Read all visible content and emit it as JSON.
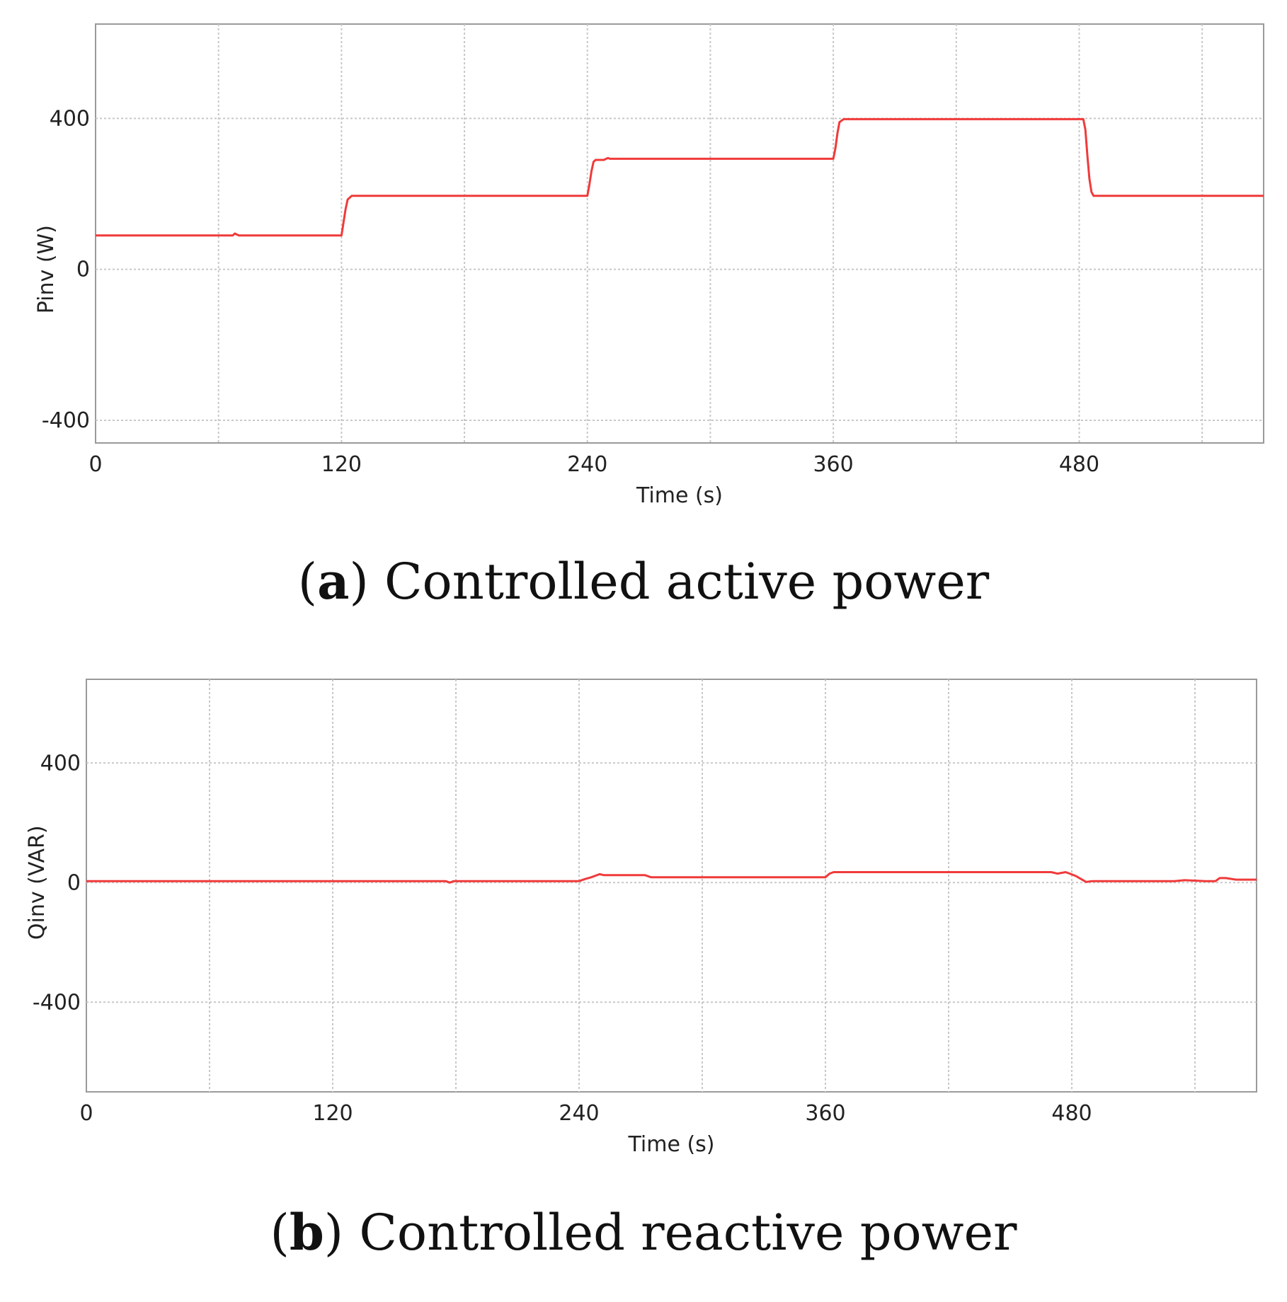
{
  "captions": [
    {
      "letter": "a",
      "text": "Controlled active power"
    },
    {
      "letter": "b",
      "text": "Controlled reactive power"
    }
  ],
  "colors": {
    "line": "#f03a3a",
    "grid": "#c8c8c8",
    "frame": "#9a9a9a"
  },
  "chart_data": [
    {
      "type": "line",
      "title": "",
      "xlabel": "Time (s)",
      "ylabel": "Pinv (W)",
      "xlim": [
        0,
        570
      ],
      "ylim": [
        -460,
        650
      ],
      "xticks": [
        0,
        120,
        240,
        360,
        480
      ],
      "xtick_labels": [
        "0",
        "120",
        "240",
        "360",
        "480"
      ],
      "yticks": [
        400,
        0,
        -400
      ],
      "ytick_labels": [
        "400",
        "0",
        "-400"
      ],
      "x_minor_gridlines": [
        60,
        180,
        300,
        420,
        540
      ],
      "grid": true,
      "series": [
        {
          "name": "Pinv",
          "x": [
            0,
            67,
            68,
            69,
            70,
            120,
            121,
            122,
            123,
            125,
            240,
            241,
            242,
            243,
            244,
            248,
            250,
            251,
            360,
            361,
            362,
            363,
            365,
            482,
            483,
            484,
            485,
            486,
            487,
            570
          ],
          "y": [
            90,
            90,
            95,
            92,
            90,
            90,
            125,
            160,
            185,
            195,
            195,
            225,
            260,
            285,
            290,
            290,
            295,
            293,
            293,
            320,
            360,
            390,
            398,
            398,
            370,
            300,
            240,
            205,
            195,
            195
          ]
        }
      ]
    },
    {
      "type": "line",
      "title": "",
      "xlabel": "Time (s)",
      "ylabel": "Qinv (VAR)",
      "xlim": [
        0,
        570
      ],
      "ylim": [
        -700,
        680
      ],
      "xticks": [
        0,
        120,
        240,
        360,
        480
      ],
      "xtick_labels": [
        "0",
        "120",
        "240",
        "360",
        "480"
      ],
      "yticks": [
        400,
        0,
        -400
      ],
      "ytick_labels": [
        "400",
        "0",
        "-400"
      ],
      "x_minor_gridlines": [
        60,
        180,
        300,
        420,
        540
      ],
      "grid": true,
      "series": [
        {
          "name": "Qinv",
          "x": [
            0,
            175,
            177,
            179,
            240,
            243,
            246,
            250,
            252,
            272,
            275,
            360,
            362,
            364,
            470,
            473,
            477,
            479,
            482,
            485,
            487,
            490,
            495,
            500,
            530,
            535,
            545,
            550,
            552,
            555,
            560,
            570
          ],
          "y": [
            5,
            5,
            0,
            5,
            5,
            12,
            18,
            28,
            25,
            25,
            18,
            18,
            30,
            35,
            35,
            30,
            35,
            30,
            22,
            10,
            2,
            5,
            5,
            5,
            5,
            8,
            5,
            5,
            15,
            15,
            10,
            10
          ]
        }
      ]
    }
  ]
}
